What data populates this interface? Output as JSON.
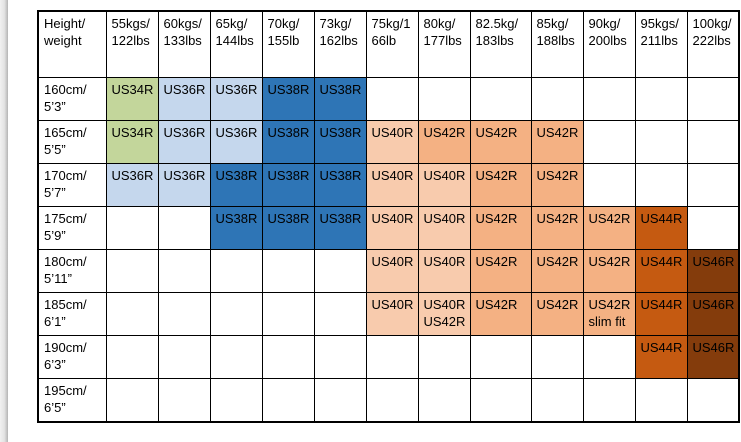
{
  "legend_colors": {
    "green": "#C3D69B",
    "lightBlue": "#C5D7ED",
    "blue": "#2E75B6",
    "lightOrange": "#F8CBAD",
    "orange": "#F4B183",
    "darkOrange": "#C55A11",
    "brown": "#843C0C",
    "empty": "#FFFFFF"
  },
  "table": {
    "corner": [
      "Height/",
      "weight"
    ],
    "columns": [
      [
        "55kgs/",
        "122lbs"
      ],
      [
        "60kgs/",
        "133lbs"
      ],
      [
        "65kg/",
        "144lbs"
      ],
      [
        "70kg/",
        "155lb"
      ],
      [
        "73kg/",
        "162lbs"
      ],
      [
        "75kg/1",
        "66lb"
      ],
      [
        "80kg/",
        "177lbs"
      ],
      [
        "82.5kg/",
        "183lbs"
      ],
      [
        "85kg/",
        "188lbs"
      ],
      [
        "90kg/",
        "200lbs"
      ],
      [
        "95kgs/",
        "211lbs"
      ],
      [
        "100kg/",
        "222lbs"
      ]
    ],
    "rows": [
      {
        "label": [
          "160cm/",
          "5’3”"
        ],
        "cells": [
          {
            "lines": [
              "US34R"
            ],
            "bg": "green"
          },
          {
            "lines": [
              "US36R"
            ],
            "bg": "lightBlue"
          },
          {
            "lines": [
              "US36R"
            ],
            "bg": "lightBlue"
          },
          {
            "lines": [
              "US38R"
            ],
            "bg": "blue"
          },
          {
            "lines": [
              "US38R"
            ],
            "bg": "blue"
          },
          null,
          null,
          null,
          null,
          null,
          null,
          null
        ]
      },
      {
        "label": [
          "165cm/",
          "5’5”"
        ],
        "cells": [
          {
            "lines": [
              "US34R"
            ],
            "bg": "green"
          },
          {
            "lines": [
              "US36R"
            ],
            "bg": "lightBlue"
          },
          {
            "lines": [
              "US36R"
            ],
            "bg": "lightBlue"
          },
          {
            "lines": [
              "US38R"
            ],
            "bg": "blue"
          },
          {
            "lines": [
              "US38R"
            ],
            "bg": "blue"
          },
          {
            "lines": [
              "US40R"
            ],
            "bg": "lightOrange"
          },
          {
            "lines": [
              "US42R"
            ],
            "bg": "orange"
          },
          {
            "lines": [
              "US42R"
            ],
            "bg": "orange"
          },
          {
            "lines": [
              "US42R"
            ],
            "bg": "orange"
          },
          null,
          null,
          null
        ]
      },
      {
        "label": [
          "170cm/",
          "5’7”"
        ],
        "cells": [
          {
            "lines": [
              "US36R"
            ],
            "bg": "lightBlue"
          },
          {
            "lines": [
              "US36R"
            ],
            "bg": "lightBlue"
          },
          {
            "lines": [
              "US38R"
            ],
            "bg": "blue"
          },
          {
            "lines": [
              "US38R"
            ],
            "bg": "blue"
          },
          {
            "lines": [
              "US38R"
            ],
            "bg": "blue"
          },
          {
            "lines": [
              "US40R"
            ],
            "bg": "lightOrange"
          },
          {
            "lines": [
              "US40R"
            ],
            "bg": "lightOrange"
          },
          {
            "lines": [
              "US42R"
            ],
            "bg": "orange"
          },
          {
            "lines": [
              "US42R"
            ],
            "bg": "orange"
          },
          null,
          null,
          null
        ]
      },
      {
        "label": [
          "175cm/",
          "5’9”"
        ],
        "cells": [
          null,
          null,
          {
            "lines": [
              "US38R"
            ],
            "bg": "blue"
          },
          {
            "lines": [
              "US38R"
            ],
            "bg": "blue"
          },
          {
            "lines": [
              "US38R"
            ],
            "bg": "blue"
          },
          {
            "lines": [
              "US40R"
            ],
            "bg": "lightOrange"
          },
          {
            "lines": [
              "US40R"
            ],
            "bg": "lightOrange"
          },
          {
            "lines": [
              "US42R"
            ],
            "bg": "orange"
          },
          {
            "lines": [
              "US42R"
            ],
            "bg": "orange"
          },
          {
            "lines": [
              "US42R"
            ],
            "bg": "orange"
          },
          {
            "lines": [
              "US44R"
            ],
            "bg": "darkOrange"
          },
          null
        ]
      },
      {
        "label": [
          "180cm/",
          "5’11”"
        ],
        "cells": [
          null,
          null,
          null,
          null,
          null,
          {
            "lines": [
              "US40R"
            ],
            "bg": "lightOrange"
          },
          {
            "lines": [
              "US40R"
            ],
            "bg": "lightOrange"
          },
          {
            "lines": [
              "US42R"
            ],
            "bg": "orange"
          },
          {
            "lines": [
              "US42R"
            ],
            "bg": "orange"
          },
          {
            "lines": [
              "US42R"
            ],
            "bg": "orange"
          },
          {
            "lines": [
              "US44R"
            ],
            "bg": "darkOrange"
          },
          {
            "lines": [
              "US46R"
            ],
            "bg": "brown"
          }
        ]
      },
      {
        "label": [
          "185cm/",
          "6’1”"
        ],
        "cells": [
          null,
          null,
          null,
          null,
          null,
          {
            "lines": [
              "US40R"
            ],
            "bg": "lightOrange"
          },
          {
            "lines": [
              "US40R",
              "US42R"
            ],
            "bg": "lightOrange"
          },
          {
            "lines": [
              "US42R"
            ],
            "bg": "orange"
          },
          {
            "lines": [
              "US42R"
            ],
            "bg": "orange"
          },
          {
            "lines": [
              "US42R",
              "slim fit"
            ],
            "bg": "orange"
          },
          {
            "lines": [
              "US44R"
            ],
            "bg": "darkOrange"
          },
          {
            "lines": [
              "US46R"
            ],
            "bg": "brown"
          }
        ]
      },
      {
        "label": [
          "190cm/",
          "6’3”"
        ],
        "cells": [
          null,
          null,
          null,
          null,
          null,
          null,
          null,
          null,
          null,
          null,
          {
            "lines": [
              "US44R"
            ],
            "bg": "darkOrange"
          },
          {
            "lines": [
              "US46R"
            ],
            "bg": "brown"
          }
        ]
      },
      {
        "label": [
          "195cm/",
          "6’5”"
        ],
        "cells": [
          null,
          null,
          null,
          null,
          null,
          null,
          null,
          null,
          null,
          null,
          null,
          null
        ]
      }
    ]
  }
}
